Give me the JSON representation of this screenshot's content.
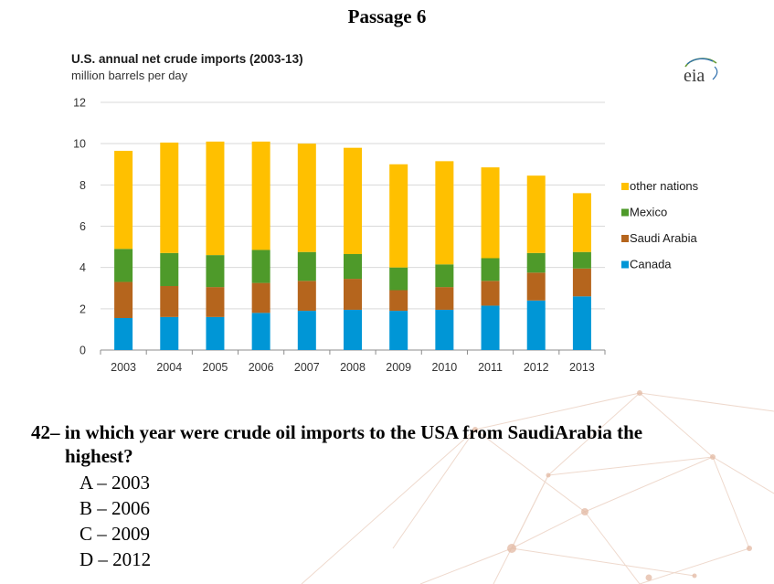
{
  "passage_title": "Passage 6",
  "question": {
    "line1": "42– in which year were crude oil imports to the USA from SaudiArabia the",
    "line2": "highest?",
    "options": [
      {
        "letter": "A",
        "text": "A – 2003"
      },
      {
        "letter": "B",
        "text": "B – 2006"
      },
      {
        "letter": "C",
        "text": "C – 2009"
      },
      {
        "letter": "D",
        "text": "D – 2012"
      }
    ]
  },
  "logo_text": "eia",
  "chart_data": {
    "type": "bar",
    "stacked": true,
    "title": "U.S. annual net crude imports (2003-13)",
    "subtitle": "million barrels per day",
    "categories": [
      "2003",
      "2004",
      "2005",
      "2006",
      "2007",
      "2008",
      "2009",
      "2010",
      "2011",
      "2012",
      "2013"
    ],
    "yticks": [
      "0",
      "2",
      "4",
      "6",
      "8",
      "10",
      "12"
    ],
    "ylim": [
      0,
      12
    ],
    "grid": true,
    "legend_position": "right",
    "series": [
      {
        "name": "Canada",
        "color": "#0096d6",
        "values": [
          1.55,
          1.6,
          1.6,
          1.8,
          1.9,
          1.95,
          1.9,
          1.95,
          2.15,
          2.4,
          2.6
        ]
      },
      {
        "name": "Saudi Arabia",
        "color": "#b5651d",
        "values": [
          1.75,
          1.5,
          1.45,
          1.45,
          1.45,
          1.5,
          1.0,
          1.1,
          1.2,
          1.35,
          1.35
        ]
      },
      {
        "name": "Mexico",
        "color": "#4e9a2a",
        "values": [
          1.6,
          1.6,
          1.55,
          1.6,
          1.4,
          1.2,
          1.1,
          1.1,
          1.1,
          0.95,
          0.8
        ]
      },
      {
        "name": "other nations",
        "color": "#ffc000",
        "values": [
          4.75,
          5.35,
          5.5,
          5.25,
          5.25,
          5.15,
          5.0,
          5.0,
          4.4,
          3.75,
          2.85
        ]
      }
    ],
    "legend_order": [
      "other nations",
      "Mexico",
      "Saudi Arabia",
      "Canada"
    ]
  }
}
